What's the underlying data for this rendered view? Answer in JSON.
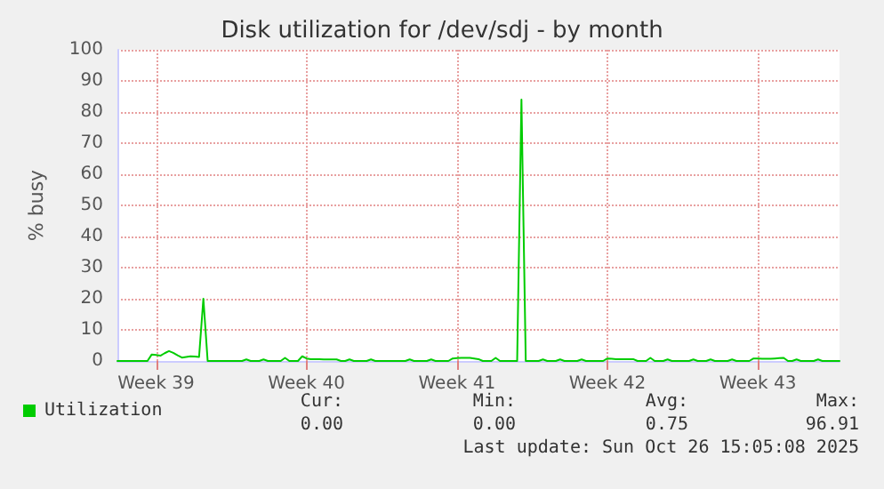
{
  "chart_data": {
    "type": "line",
    "title": "Disk utilization for /dev/sdj - by month",
    "ylabel": "% busy",
    "categories": [
      null,
      null,
      null,
      null,
      null,
      null,
      null,
      null,
      null,
      "Week 39",
      null,
      null,
      null,
      null,
      null,
      null,
      null,
      null,
      null,
      null,
      null,
      null,
      null,
      null,
      null,
      null,
      null,
      null,
      null,
      null,
      null,
      null,
      null,
      null,
      null,
      null,
      null,
      null,
      null,
      null,
      null,
      null,
      null,
      null,
      "Week 40",
      null,
      null,
      null,
      null,
      null,
      null,
      null,
      null,
      null,
      null,
      null,
      null,
      null,
      null,
      null,
      null,
      null,
      null,
      null,
      null,
      null,
      null,
      null,
      null,
      null,
      null,
      null,
      null,
      null,
      null,
      null,
      null,
      null,
      null,
      "Week 41",
      null,
      null,
      null,
      null,
      null,
      null,
      null,
      null,
      null,
      null,
      null,
      null,
      null,
      null,
      null,
      null,
      null,
      null,
      null,
      null,
      null,
      null,
      null,
      null,
      null,
      null,
      null,
      null,
      null,
      null,
      null,
      null,
      null,
      null,
      "Week 42",
      null,
      null,
      null,
      null,
      null,
      null,
      null,
      null,
      null,
      null,
      null,
      null,
      null,
      null,
      null,
      null,
      null,
      null,
      null,
      null,
      null,
      null,
      null,
      null,
      null,
      null,
      null,
      null,
      null,
      null,
      null,
      null,
      null,
      null,
      "Week 43",
      null,
      null,
      null,
      null,
      null,
      null,
      null,
      null,
      null,
      null,
      null,
      null,
      null,
      null,
      null,
      null,
      null,
      null,
      null
    ],
    "ylim": [
      0,
      100
    ],
    "yticks": [
      0,
      10,
      20,
      30,
      40,
      50,
      60,
      70,
      80,
      90,
      100
    ],
    "grid": true,
    "legend": "bottom left",
    "marker": "none",
    "line_style": "solid",
    "series": [
      {
        "name": "Utilization",
        "color": "#00cc00",
        "values": [
          0,
          0,
          0,
          0,
          0,
          0,
          0,
          0,
          2.1,
          1.9,
          1.7,
          2.5,
          3.2,
          2.6,
          1.8,
          1.1,
          1.3,
          1.5,
          1.4,
          1.3,
          20,
          0,
          0,
          0,
          0,
          0,
          0,
          0,
          0,
          0,
          0.5,
          0,
          0,
          0,
          0.5,
          0,
          0,
          0,
          0,
          1,
          0,
          0,
          0,
          1.5,
          0.8,
          0.6,
          0.6,
          0.6,
          0.5,
          0.5,
          0.5,
          0.5,
          0,
          0,
          0.5,
          0,
          0,
          0,
          0,
          0.5,
          0,
          0,
          0,
          0,
          0,
          0,
          0,
          0,
          0.5,
          0,
          0,
          0,
          0,
          0.5,
          0,
          0,
          0,
          0,
          0.8,
          0.9,
          1,
          1,
          1,
          0.8,
          0.6,
          0,
          0,
          0,
          1,
          0,
          0,
          0,
          0,
          0,
          84,
          0,
          0,
          0,
          0,
          0.5,
          0,
          0,
          0,
          0.5,
          0,
          0,
          0,
          0,
          0.5,
          0,
          0,
          0,
          0,
          0,
          0.8,
          0.7,
          0.6,
          0.6,
          0.6,
          0.6,
          0.6,
          0,
          0,
          0,
          1,
          0,
          0,
          0,
          0.5,
          0,
          0,
          0,
          0,
          0,
          0.5,
          0,
          0,
          0,
          0.5,
          0,
          0,
          0,
          0,
          0.5,
          0,
          0,
          0,
          0,
          0.8,
          0.8,
          0.7,
          0.7,
          0.7,
          0.8,
          0.9,
          1,
          0,
          0,
          0.5,
          0,
          0,
          0,
          0,
          0.5,
          0,
          0,
          0,
          0,
          0
        ]
      }
    ],
    "annotations": [
      "Cur:",
      "0.00",
      "Min:",
      "0.00",
      "Avg:",
      "0.75",
      "Max:",
      "96.91",
      "Last update: Sun Oct 26 15:05:08 2025"
    ]
  }
}
